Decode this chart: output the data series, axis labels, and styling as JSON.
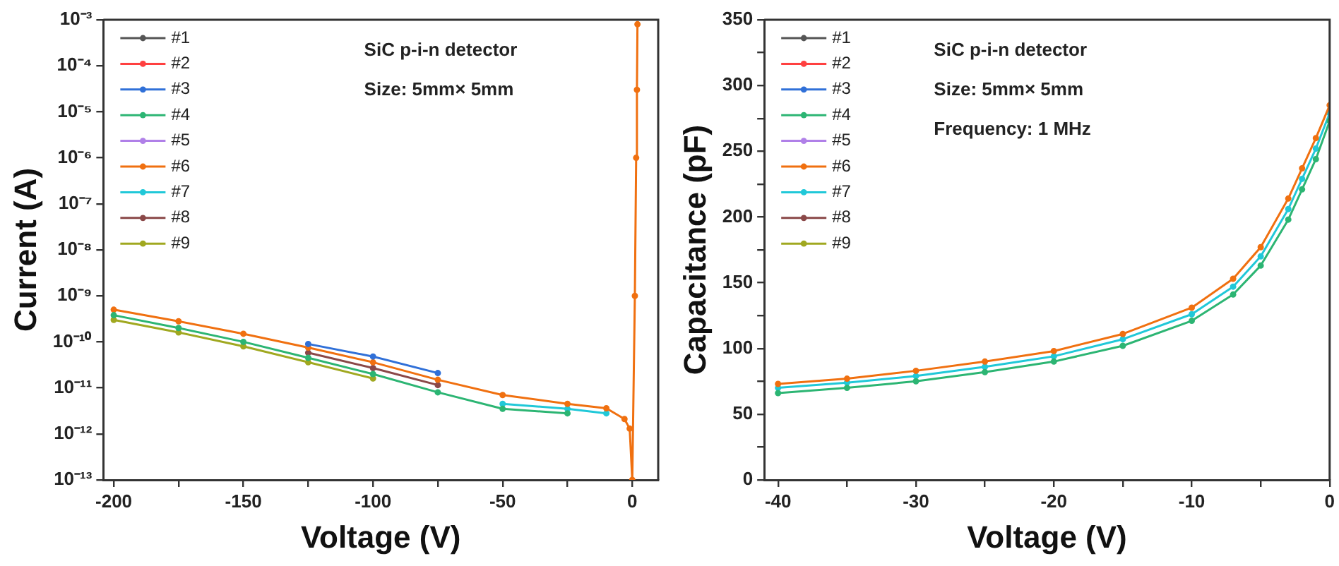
{
  "chart_data": [
    {
      "type": "line",
      "xlabel": "Voltage (V)",
      "ylabel": "Current (A)",
      "log": "y",
      "grid": false,
      "legend": "top left",
      "marker": "circle",
      "line_style": "solid",
      "annotations": [
        "SiC p-i-n detector",
        "Size: 5mm× 5mm"
      ],
      "x": [
        -200,
        -175,
        -150,
        -125,
        -100,
        -75,
        -50,
        -25,
        -10,
        -3,
        -1,
        0,
        1,
        1.5,
        1.8,
        2
      ],
      "xlim": [
        -204,
        10
      ],
      "xticks": [
        -200,
        {
          "value": -175,
          "label": null
        },
        -150,
        {
          "value": -125,
          "label": null
        },
        -100,
        {
          "value": -75,
          "label": null
        },
        -50,
        {
          "value": -25,
          "label": null
        },
        0
      ],
      "ylim": [
        1e-13,
        0.001
      ],
      "yticks": [
        {
          "value": 1e-13,
          "label": "10⁻¹³"
        },
        {
          "value": 1e-12,
          "label": "10⁻¹²"
        },
        {
          "value": 1e-11,
          "label": "10⁻¹¹"
        },
        {
          "value": 1e-10,
          "label": "10⁻¹⁰"
        },
        {
          "value": 1e-09,
          "label": "10⁻⁹"
        },
        {
          "value": 1e-08,
          "label": "10⁻⁸"
        },
        {
          "value": 1e-07,
          "label": "10⁻⁷"
        },
        {
          "value": 1e-06,
          "label": "10⁻⁶"
        },
        {
          "value": 1e-05,
          "label": "10⁻⁵"
        },
        {
          "value": 0.0001,
          "label": "10⁻⁴"
        },
        {
          "value": 0.001,
          "label": "10⁻³"
        }
      ],
      "series": [
        {
          "name": "#1",
          "color": "#555555",
          "values": [
            null,
            null,
            null,
            null,
            null,
            null,
            null,
            null,
            null,
            null,
            null,
            null,
            null,
            null,
            null,
            null
          ]
        },
        {
          "name": "#2",
          "color": "#ff4040",
          "values": [
            null,
            null,
            null,
            null,
            null,
            null,
            null,
            null,
            null,
            null,
            null,
            null,
            null,
            null,
            null,
            null
          ]
        },
        {
          "name": "#3",
          "color": "#3070d8",
          "values": [
            null,
            null,
            null,
            9e-11,
            4.8e-11,
            2.1e-11,
            null,
            null,
            null,
            null,
            null,
            null,
            null,
            null,
            null,
            null
          ]
        },
        {
          "name": "#4",
          "color": "#2cb573",
          "values": [
            3.8e-10,
            2e-10,
            1e-10,
            4.5e-11,
            2e-11,
            8e-12,
            3.5e-12,
            2.8e-12,
            null,
            null,
            null,
            null,
            null,
            null,
            null,
            null
          ]
        },
        {
          "name": "#5",
          "color": "#b080e8",
          "values": [
            null,
            null,
            null,
            null,
            null,
            null,
            null,
            null,
            null,
            null,
            null,
            null,
            null,
            null,
            null,
            null
          ]
        },
        {
          "name": "#6",
          "color": "#f07010",
          "values": [
            5e-10,
            2.8e-10,
            1.5e-10,
            7.5e-11,
            3.6e-11,
            1.5e-11,
            7e-12,
            4.5e-12,
            3.6e-12,
            2.1e-12,
            1.3e-12,
            1e-13,
            1e-09,
            1e-06,
            3e-05,
            0.0008
          ]
        },
        {
          "name": "#7",
          "color": "#20c8d8",
          "values": [
            null,
            null,
            null,
            null,
            null,
            null,
            4.5e-12,
            3.5e-12,
            2.8e-12,
            null,
            null,
            null,
            null,
            null,
            null,
            null
          ]
        },
        {
          "name": "#8",
          "color": "#8a4848",
          "values": [
            null,
            null,
            null,
            5.8e-11,
            2.7e-11,
            1.15e-11,
            null,
            null,
            null,
            null,
            null,
            null,
            null,
            null,
            null,
            null
          ]
        },
        {
          "name": "#9",
          "color": "#a0a820",
          "values": [
            3e-10,
            1.6e-10,
            8e-11,
            3.6e-11,
            1.6e-11,
            null,
            null,
            null,
            null,
            null,
            null,
            null,
            null,
            null,
            null,
            null
          ]
        }
      ]
    },
    {
      "type": "line",
      "xlabel": "Voltage (V)",
      "ylabel": "Capacitance (pF)",
      "grid": false,
      "legend": "top left",
      "marker": "circle",
      "line_style": "solid",
      "annotations": [
        "SiC p-i-n detector",
        "Size: 5mm× 5mm",
        "Frequency: 1 MHz"
      ],
      "x": [
        -40,
        -35,
        -30,
        -25,
        -20,
        -15,
        -10,
        -7,
        -5,
        -3,
        -2,
        -1,
        0
      ],
      "xlim": [
        -41,
        0
      ],
      "xticks": [
        -40,
        {
          "value": -35,
          "label": null
        },
        -30,
        {
          "value": -25,
          "label": null
        },
        -20,
        {
          "value": -15,
          "label": null
        },
        -10,
        {
          "value": -5,
          "label": null
        },
        0
      ],
      "ylim": [
        0,
        350
      ],
      "yticks": [
        0,
        {
          "value": 25,
          "label": null
        },
        50,
        {
          "value": 75,
          "label": null
        },
        100,
        {
          "value": 125,
          "label": null
        },
        150,
        {
          "value": 175,
          "label": null
        },
        200,
        {
          "value": 225,
          "label": null
        },
        250,
        {
          "value": 275,
          "label": null
        },
        300,
        {
          "value": 325,
          "label": null
        },
        350
      ],
      "series": [
        {
          "name": "#1",
          "color": "#555555",
          "values": [
            null,
            null,
            null,
            null,
            null,
            null,
            null,
            null,
            null,
            null,
            null,
            null,
            null
          ]
        },
        {
          "name": "#2",
          "color": "#ff4040",
          "values": [
            null,
            null,
            null,
            null,
            null,
            null,
            null,
            null,
            null,
            null,
            null,
            null,
            null
          ]
        },
        {
          "name": "#3",
          "color": "#3070d8",
          "values": [
            null,
            null,
            null,
            null,
            null,
            null,
            null,
            null,
            null,
            null,
            null,
            null,
            null
          ]
        },
        {
          "name": "#4",
          "color": "#2cb573",
          "values": [
            66,
            70,
            75,
            82,
            90,
            102,
            121,
            141,
            163,
            198,
            221,
            244,
            273
          ]
        },
        {
          "name": "#5",
          "color": "#b080e8",
          "values": [
            null,
            null,
            null,
            null,
            null,
            null,
            null,
            null,
            null,
            null,
            null,
            null,
            null
          ]
        },
        {
          "name": "#6",
          "color": "#f07010",
          "values": [
            73,
            77,
            83,
            90,
            98,
            111,
            131,
            153,
            177,
            214,
            237,
            260,
            285
          ]
        },
        {
          "name": "#7",
          "color": "#20c8d8",
          "values": [
            70,
            74,
            79,
            86,
            94,
            107,
            126,
            147,
            170,
            206,
            229,
            252,
            279
          ]
        },
        {
          "name": "#8",
          "color": "#8a4848",
          "values": [
            null,
            null,
            null,
            null,
            null,
            null,
            null,
            null,
            null,
            null,
            null,
            null,
            null
          ]
        },
        {
          "name": "#9",
          "color": "#a0a820",
          "values": [
            null,
            null,
            null,
            null,
            null,
            null,
            null,
            null,
            null,
            null,
            null,
            null,
            null
          ]
        }
      ]
    }
  ]
}
